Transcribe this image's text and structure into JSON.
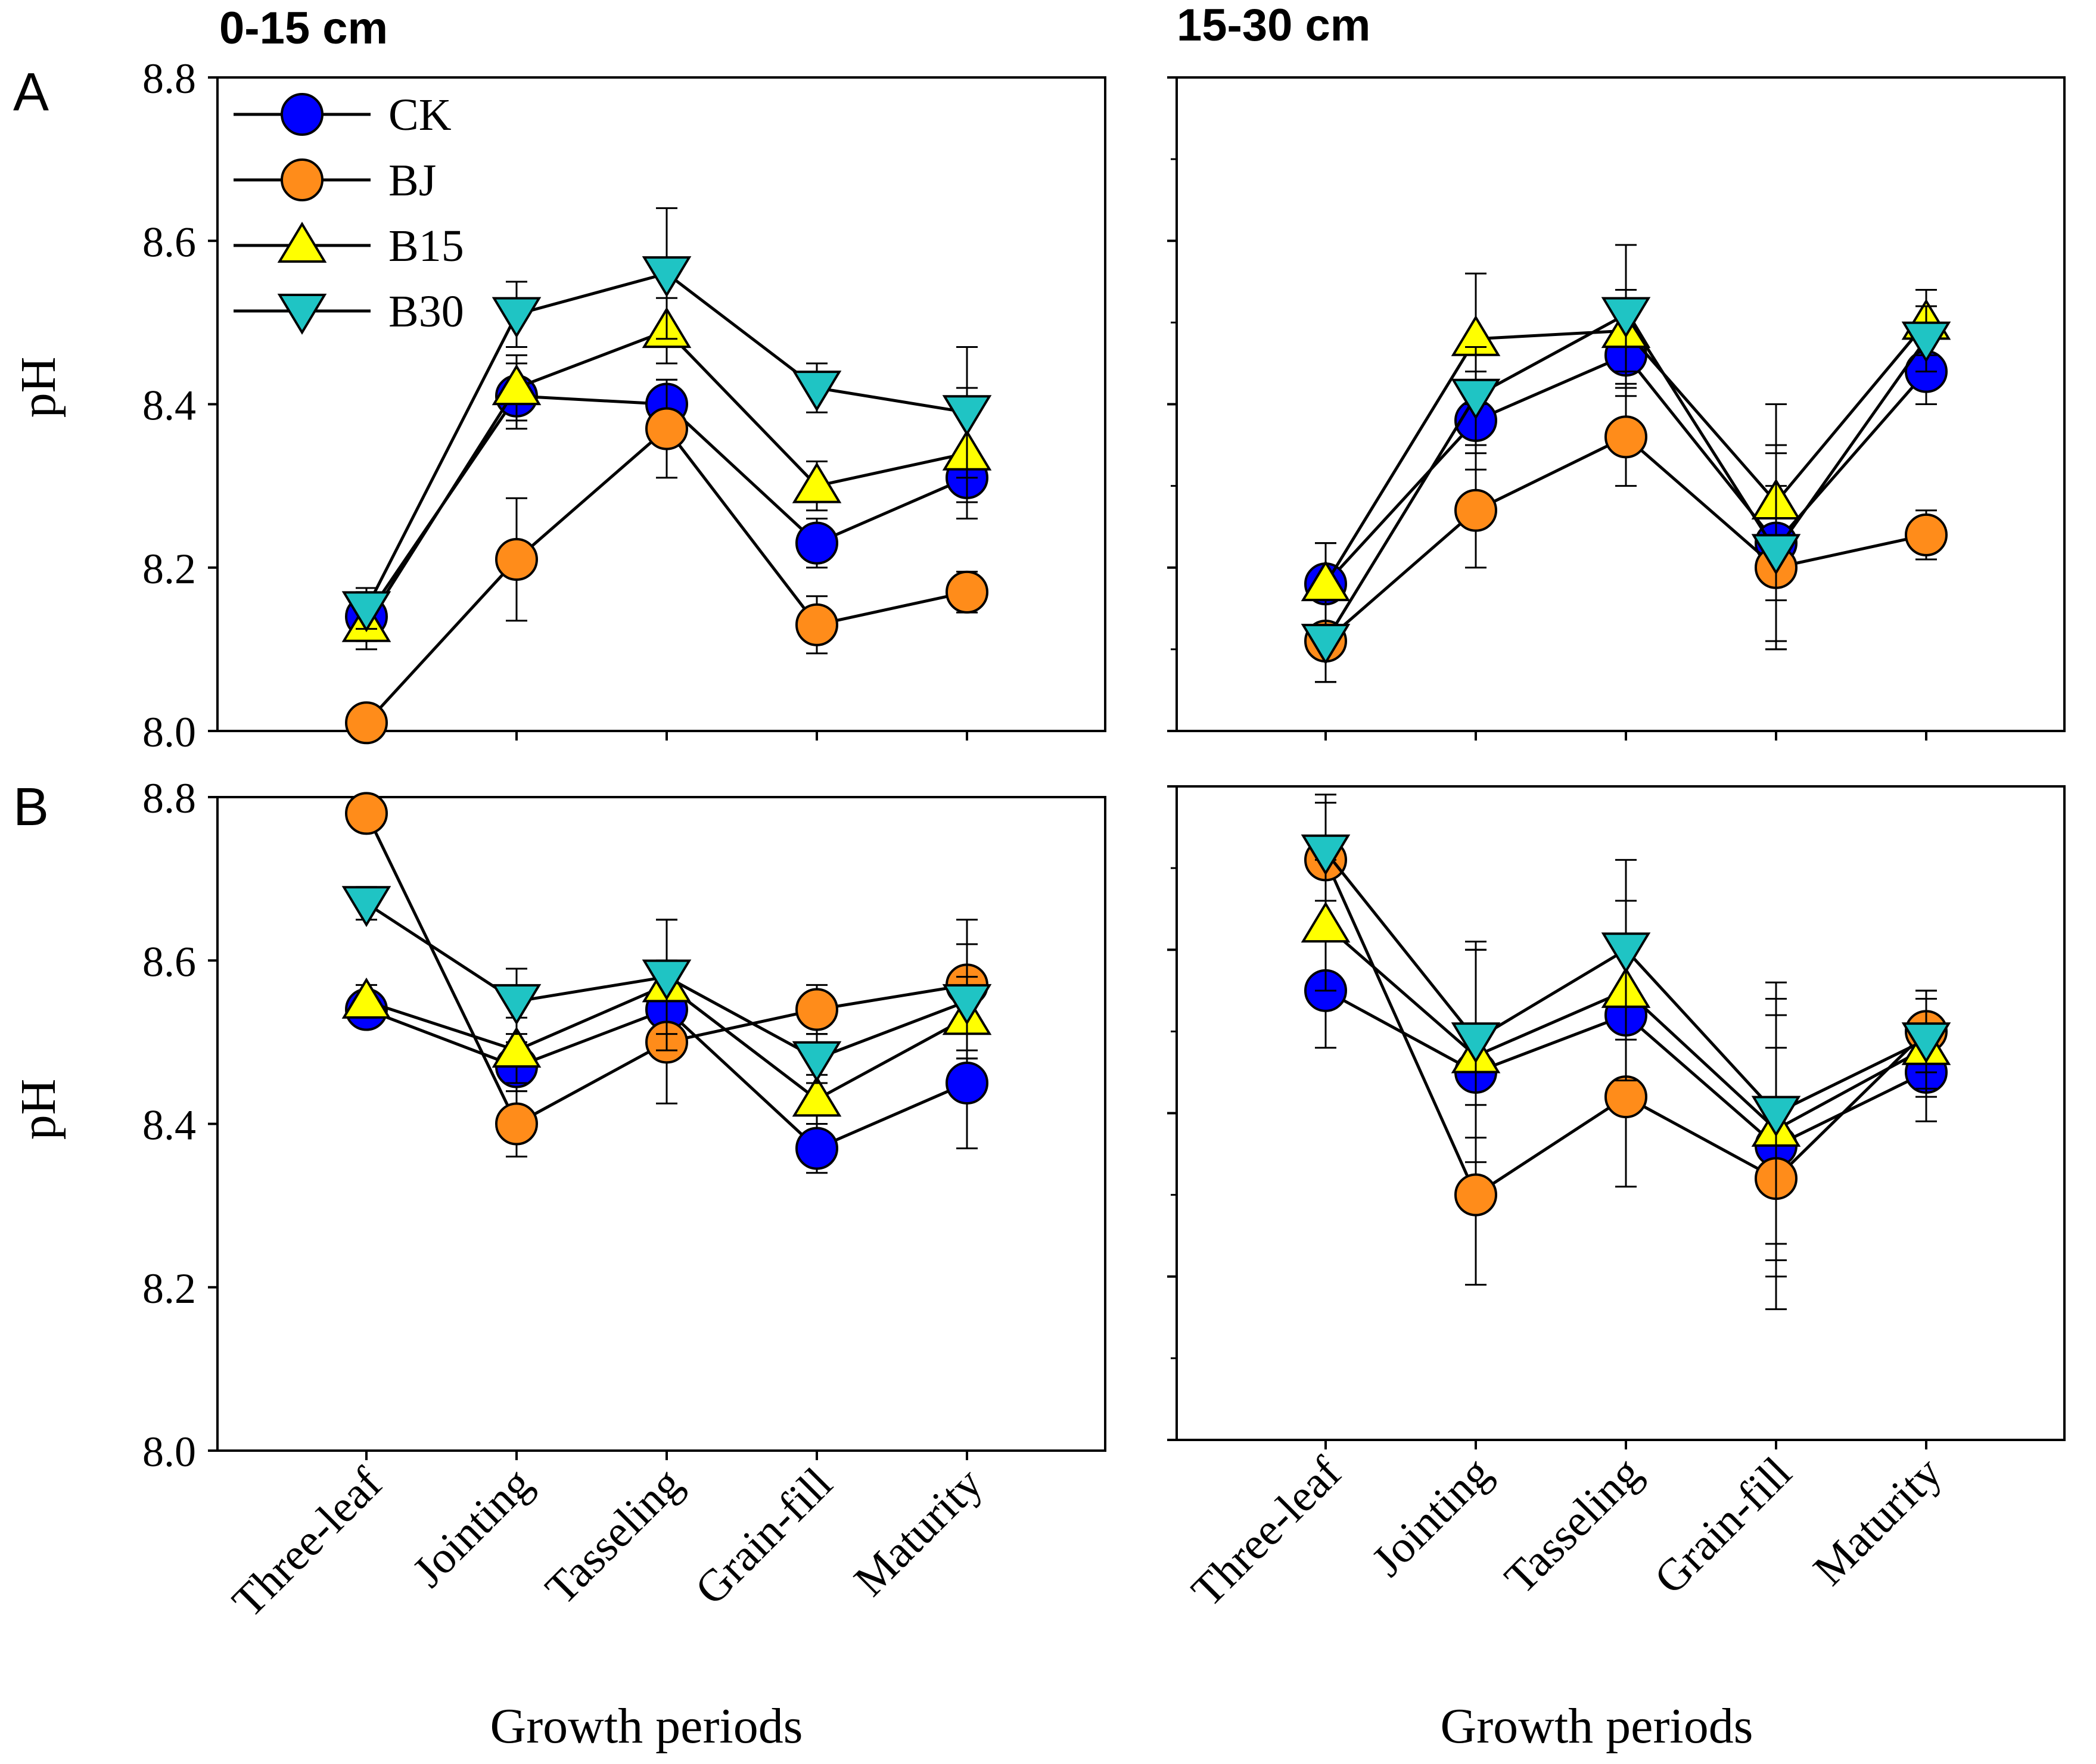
{
  "chart_data": {
    "type": "line",
    "categories": [
      "Three-leaf",
      "Jointing",
      "Tasseling",
      "Grain-fill",
      "Maturity"
    ],
    "ylim": [
      8.0,
      8.8
    ],
    "yticks": [
      "8.0",
      "8.2",
      "8.4",
      "8.6",
      "8.8"
    ],
    "ylabel": "pH",
    "xlabel": "Growth periods",
    "depth_titles": [
      "0-15 cm",
      "15-30 cm"
    ],
    "row_labels": [
      "A",
      "B"
    ],
    "legend": [
      {
        "name": "CK",
        "marker": "circle",
        "color": "#0000ff"
      },
      {
        "name": "BJ",
        "marker": "circle",
        "color": "#ff8c1a"
      },
      {
        "name": "B15",
        "marker": "triangle-up",
        "color": "#ffff00"
      },
      {
        "name": "B30",
        "marker": "triangle-down",
        "color": "#1fc4c4"
      }
    ],
    "panels": [
      {
        "row": "A",
        "depth": "0-15 cm",
        "series": [
          {
            "name": "CK",
            "values": [
              8.14,
              8.41,
              8.4,
              8.23,
              8.31
            ],
            "err": [
              0.03,
              0.04,
              0.03,
              0.03,
              0.03
            ]
          },
          {
            "name": "BJ",
            "values": [
              8.01,
              8.21,
              8.37,
              8.13,
              8.17
            ],
            "err": [
              0.0,
              0.075,
              0.06,
              0.035,
              0.025
            ]
          },
          {
            "name": "B15",
            "values": [
              8.13,
              8.42,
              8.49,
              8.3,
              8.34
            ],
            "err": [
              0.03,
              0.04,
              0.04,
              0.03,
              0.08
            ]
          },
          {
            "name": "B30",
            "values": [
              8.15,
              8.51,
              8.56,
              8.42,
              8.39
            ],
            "err": [
              0.025,
              0.04,
              0.08,
              0.03,
              0.08
            ]
          }
        ]
      },
      {
        "row": "A",
        "depth": "15-30 cm",
        "series": [
          {
            "name": "CK",
            "values": [
              8.18,
              8.38,
              8.46,
              8.23,
              8.44
            ],
            "err": [
              0.05,
              0.06,
              0.05,
              0.12,
              0.04
            ]
          },
          {
            "name": "BJ",
            "values": [
              8.11,
              8.27,
              8.36,
              8.2,
              8.24
            ],
            "err": [
              0.05,
              0.07,
              0.06,
              0.1,
              0.03
            ]
          },
          {
            "name": "B15",
            "values": [
              8.18,
              8.48,
              8.49,
              8.28,
              8.5
            ],
            "err": [
              0.05,
              0.08,
              0.05,
              0.12,
              0.04
            ]
          },
          {
            "name": "B30",
            "values": [
              8.11,
              8.41,
              8.51,
              8.22,
              8.48
            ],
            "err": [
              0.05,
              0.06,
              0.085,
              0.12,
              0.04
            ]
          }
        ]
      },
      {
        "row": "B",
        "depth": "0-15 cm",
        "series": [
          {
            "name": "CK",
            "values": [
              8.54,
              8.47,
              8.54,
              8.37,
              8.45
            ],
            "err": [
              0.02,
              0.03,
              0.06,
              0.03,
              0.08
            ]
          },
          {
            "name": "BJ",
            "values": [
              8.78,
              8.4,
              8.5,
              8.54,
              8.57
            ],
            "err": [
              0.0,
              0.04,
              0.075,
              0.03,
              0.08
            ]
          },
          {
            "name": "B15",
            "values": [
              8.55,
              8.49,
              8.57,
              8.43,
              8.53
            ],
            "err": [
              0.02,
              0.04,
              0.08,
              0.03,
              0.05
            ]
          },
          {
            "name": "B30",
            "values": [
              8.67,
              8.55,
              8.58,
              8.48,
              8.55
            ],
            "err": [
              0.02,
              0.04,
              0.07,
              0.03,
              0.07
            ]
          }
        ]
      },
      {
        "row": "B",
        "depth": "15-30 cm",
        "series": [
          {
            "name": "CK",
            "values": [
              8.55,
              8.45,
              8.52,
              8.36,
              8.45
            ],
            "err": [
              0.07,
              0.15,
              0.09,
              0.16,
              0.06
            ]
          },
          {
            "name": "BJ",
            "values": [
              8.71,
              8.3,
              8.42,
              8.32,
              8.5
            ],
            "err": [
              0.08,
              0.11,
              0.11,
              0.16,
              0.05
            ]
          },
          {
            "name": "B15",
            "values": [
              8.63,
              8.47,
              8.55,
              8.38,
              8.48
            ],
            "err": [
              0.08,
              0.13,
              0.11,
              0.16,
              0.06
            ]
          },
          {
            "name": "B30",
            "values": [
              8.72,
              8.49,
              8.6,
              8.4,
              8.49
            ],
            "err": [
              0.06,
              0.12,
              0.11,
              0.16,
              0.06
            ]
          }
        ]
      }
    ]
  }
}
